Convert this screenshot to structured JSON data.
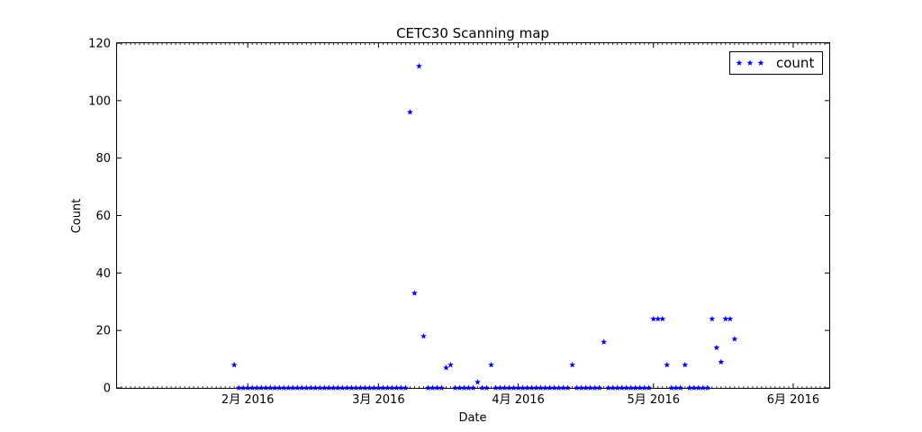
{
  "chart_data": {
    "type": "scatter",
    "title": "CETC30 Scanning map",
    "xlabel": "Date",
    "ylabel": "Count",
    "ylim": [
      0,
      120
    ],
    "yticks": [
      "0",
      "20",
      "40",
      "60",
      "80",
      "100",
      "120"
    ],
    "xlim": [
      "2016-01-03",
      "2016-06-09"
    ],
    "xticks": [
      {
        "date": "2016-02-01",
        "label": "2月 2016"
      },
      {
        "date": "2016-03-01",
        "label": "3月 2016"
      },
      {
        "date": "2016-04-01",
        "label": "4月 2016"
      },
      {
        "date": "2016-05-01",
        "label": "5月 2016"
      },
      {
        "date": "2016-06-01",
        "label": "6月 2016"
      }
    ],
    "grid": false,
    "legend_position": "top-right",
    "marker": "star",
    "series": [
      {
        "name": "count",
        "color": "#0000ff",
        "points": [
          {
            "x": "2016-01-29",
            "y": 8
          },
          {
            "x": "2016-01-30",
            "y": 0
          },
          {
            "x": "2016-01-31",
            "y": 0
          },
          {
            "x": "2016-02-01",
            "y": 0
          },
          {
            "x": "2016-02-02",
            "y": 0
          },
          {
            "x": "2016-02-03",
            "y": 0
          },
          {
            "x": "2016-02-04",
            "y": 0
          },
          {
            "x": "2016-02-05",
            "y": 0
          },
          {
            "x": "2016-02-06",
            "y": 0
          },
          {
            "x": "2016-02-07",
            "y": 0
          },
          {
            "x": "2016-02-08",
            "y": 0
          },
          {
            "x": "2016-02-09",
            "y": 0
          },
          {
            "x": "2016-02-10",
            "y": 0
          },
          {
            "x": "2016-02-11",
            "y": 0
          },
          {
            "x": "2016-02-12",
            "y": 0
          },
          {
            "x": "2016-02-13",
            "y": 0
          },
          {
            "x": "2016-02-14",
            "y": 0
          },
          {
            "x": "2016-02-15",
            "y": 0
          },
          {
            "x": "2016-02-16",
            "y": 0
          },
          {
            "x": "2016-02-17",
            "y": 0
          },
          {
            "x": "2016-02-18",
            "y": 0
          },
          {
            "x": "2016-02-19",
            "y": 0
          },
          {
            "x": "2016-02-20",
            "y": 0
          },
          {
            "x": "2016-02-21",
            "y": 0
          },
          {
            "x": "2016-02-22",
            "y": 0
          },
          {
            "x": "2016-02-23",
            "y": 0
          },
          {
            "x": "2016-02-24",
            "y": 0
          },
          {
            "x": "2016-02-25",
            "y": 0
          },
          {
            "x": "2016-02-26",
            "y": 0
          },
          {
            "x": "2016-02-27",
            "y": 0
          },
          {
            "x": "2016-02-28",
            "y": 0
          },
          {
            "x": "2016-02-29",
            "y": 0
          },
          {
            "x": "2016-03-01",
            "y": 0
          },
          {
            "x": "2016-03-02",
            "y": 0
          },
          {
            "x": "2016-03-03",
            "y": 0
          },
          {
            "x": "2016-03-04",
            "y": 0
          },
          {
            "x": "2016-03-05",
            "y": 0
          },
          {
            "x": "2016-03-06",
            "y": 0
          },
          {
            "x": "2016-03-07",
            "y": 0
          },
          {
            "x": "2016-03-08",
            "y": 96
          },
          {
            "x": "2016-03-09",
            "y": 33
          },
          {
            "x": "2016-03-10",
            "y": 112
          },
          {
            "x": "2016-03-11",
            "y": 18
          },
          {
            "x": "2016-03-12",
            "y": 0
          },
          {
            "x": "2016-03-13",
            "y": 0
          },
          {
            "x": "2016-03-14",
            "y": 0
          },
          {
            "x": "2016-03-15",
            "y": 0
          },
          {
            "x": "2016-03-16",
            "y": 7
          },
          {
            "x": "2016-03-17",
            "y": 8
          },
          {
            "x": "2016-03-18",
            "y": 0
          },
          {
            "x": "2016-03-19",
            "y": 0
          },
          {
            "x": "2016-03-20",
            "y": 0
          },
          {
            "x": "2016-03-21",
            "y": 0
          },
          {
            "x": "2016-03-22",
            "y": 0
          },
          {
            "x": "2016-03-23",
            "y": 2
          },
          {
            "x": "2016-03-24",
            "y": 0
          },
          {
            "x": "2016-03-25",
            "y": 0
          },
          {
            "x": "2016-03-26",
            "y": 8
          },
          {
            "x": "2016-03-27",
            "y": 0
          },
          {
            "x": "2016-03-28",
            "y": 0
          },
          {
            "x": "2016-03-29",
            "y": 0
          },
          {
            "x": "2016-03-30",
            "y": 0
          },
          {
            "x": "2016-03-31",
            "y": 0
          },
          {
            "x": "2016-04-01",
            "y": 0
          },
          {
            "x": "2016-04-02",
            "y": 0
          },
          {
            "x": "2016-04-03",
            "y": 0
          },
          {
            "x": "2016-04-04",
            "y": 0
          },
          {
            "x": "2016-04-05",
            "y": 0
          },
          {
            "x": "2016-04-06",
            "y": 0
          },
          {
            "x": "2016-04-07",
            "y": 0
          },
          {
            "x": "2016-04-08",
            "y": 0
          },
          {
            "x": "2016-04-09",
            "y": 0
          },
          {
            "x": "2016-04-10",
            "y": 0
          },
          {
            "x": "2016-04-11",
            "y": 0
          },
          {
            "x": "2016-04-12",
            "y": 0
          },
          {
            "x": "2016-04-13",
            "y": 8
          },
          {
            "x": "2016-04-14",
            "y": 0
          },
          {
            "x": "2016-04-15",
            "y": 0
          },
          {
            "x": "2016-04-16",
            "y": 0
          },
          {
            "x": "2016-04-17",
            "y": 0
          },
          {
            "x": "2016-04-18",
            "y": 0
          },
          {
            "x": "2016-04-19",
            "y": 0
          },
          {
            "x": "2016-04-20",
            "y": 16
          },
          {
            "x": "2016-04-21",
            "y": 0
          },
          {
            "x": "2016-04-22",
            "y": 0
          },
          {
            "x": "2016-04-23",
            "y": 0
          },
          {
            "x": "2016-04-24",
            "y": 0
          },
          {
            "x": "2016-04-25",
            "y": 0
          },
          {
            "x": "2016-04-26",
            "y": 0
          },
          {
            "x": "2016-04-27",
            "y": 0
          },
          {
            "x": "2016-04-28",
            "y": 0
          },
          {
            "x": "2016-04-29",
            "y": 0
          },
          {
            "x": "2016-04-30",
            "y": 0
          },
          {
            "x": "2016-05-01",
            "y": 24
          },
          {
            "x": "2016-05-02",
            "y": 24
          },
          {
            "x": "2016-05-03",
            "y": 24
          },
          {
            "x": "2016-05-04",
            "y": 8
          },
          {
            "x": "2016-05-05",
            "y": 0
          },
          {
            "x": "2016-05-06",
            "y": 0
          },
          {
            "x": "2016-05-07",
            "y": 0
          },
          {
            "x": "2016-05-08",
            "y": 8
          },
          {
            "x": "2016-05-09",
            "y": 0
          },
          {
            "x": "2016-05-10",
            "y": 0
          },
          {
            "x": "2016-05-11",
            "y": 0
          },
          {
            "x": "2016-05-12",
            "y": 0
          },
          {
            "x": "2016-05-13",
            "y": 0
          },
          {
            "x": "2016-05-14",
            "y": 24
          },
          {
            "x": "2016-05-15",
            "y": 14
          },
          {
            "x": "2016-05-16",
            "y": 9
          },
          {
            "x": "2016-05-17",
            "y": 24
          },
          {
            "x": "2016-05-18",
            "y": 24
          },
          {
            "x": "2016-05-19",
            "y": 17
          }
        ]
      }
    ]
  }
}
